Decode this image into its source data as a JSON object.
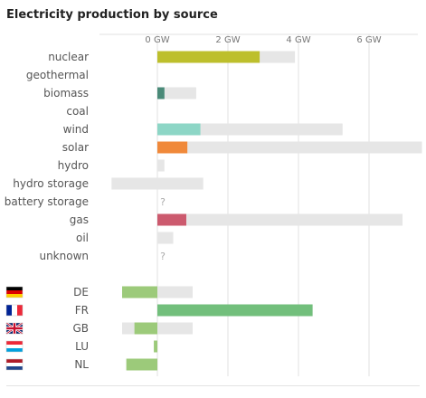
{
  "chart_data": {
    "type": "bar",
    "title": "Electricity production by source",
    "x_ticks": [
      "0 GW",
      "2 GW",
      "4 GW",
      "6 GW"
    ],
    "x_tick_values": [
      0,
      2,
      4,
      6
    ],
    "unit": "GW",
    "sources": [
      {
        "name": "nuclear",
        "value": 2.9,
        "capacity": 3.9,
        "color": "#bdbf2c"
      },
      {
        "name": "geothermal",
        "value": null,
        "capacity": null,
        "color": "#cccccc"
      },
      {
        "name": "biomass",
        "value": 0.2,
        "capacity": 1.1,
        "color": "#4a8a78"
      },
      {
        "name": "coal",
        "value": null,
        "capacity": null,
        "color": "#555555"
      },
      {
        "name": "wind",
        "value": 1.22,
        "capacity": 5.25,
        "color": "#8dd6c6"
      },
      {
        "name": "solar",
        "value": 0.85,
        "capacity": 7.5,
        "color": "#f0893a"
      },
      {
        "name": "hydro",
        "value": null,
        "capacity": 0.2,
        "color": "#3b7bb5"
      },
      {
        "name": "hydro storage",
        "value": null,
        "capacity": 1.3,
        "capacity_min": -1.3,
        "color": "#3b7bb5"
      },
      {
        "name": "battery storage",
        "value": null,
        "capacity": null,
        "color": "#cccccc",
        "unknown_label": "?"
      },
      {
        "name": "gas",
        "value": 0.82,
        "capacity": 6.95,
        "color": "#cc5a6e"
      },
      {
        "name": "oil",
        "value": null,
        "capacity": 0.45,
        "color": "#8c6a4f"
      },
      {
        "name": "unknown",
        "value": null,
        "capacity": null,
        "color": "#cccccc",
        "unknown_label": "?"
      }
    ],
    "exchanges": [
      {
        "country": "DE",
        "flag": "de",
        "value": -1.0,
        "capacity_min": -1.0,
        "capacity_max": 1.0,
        "color": "#9cca7a"
      },
      {
        "country": "FR",
        "flag": "fr",
        "value": 4.4,
        "capacity_min": 0,
        "capacity_max": 4.4,
        "color": "#72bf7c"
      },
      {
        "country": "GB",
        "flag": "gb",
        "value": -0.65,
        "capacity_min": -1.0,
        "capacity_max": 1.0,
        "color": "#9cca7a"
      },
      {
        "country": "LU",
        "flag": "lu",
        "value": -0.1,
        "capacity_min": -0.1,
        "capacity_max": 0,
        "color": "#9cca7a"
      },
      {
        "country": "NL",
        "flag": "nl",
        "value": -0.88,
        "capacity_min": -0.88,
        "capacity_max": 0,
        "color": "#9cca7a"
      }
    ],
    "colors": {
      "capacity_bar": "#e6e6e6",
      "gridline": "#e0e0e0",
      "label_text": "#555555",
      "tick_text": "#777777",
      "unknown_text": "#aaaaaa"
    }
  }
}
